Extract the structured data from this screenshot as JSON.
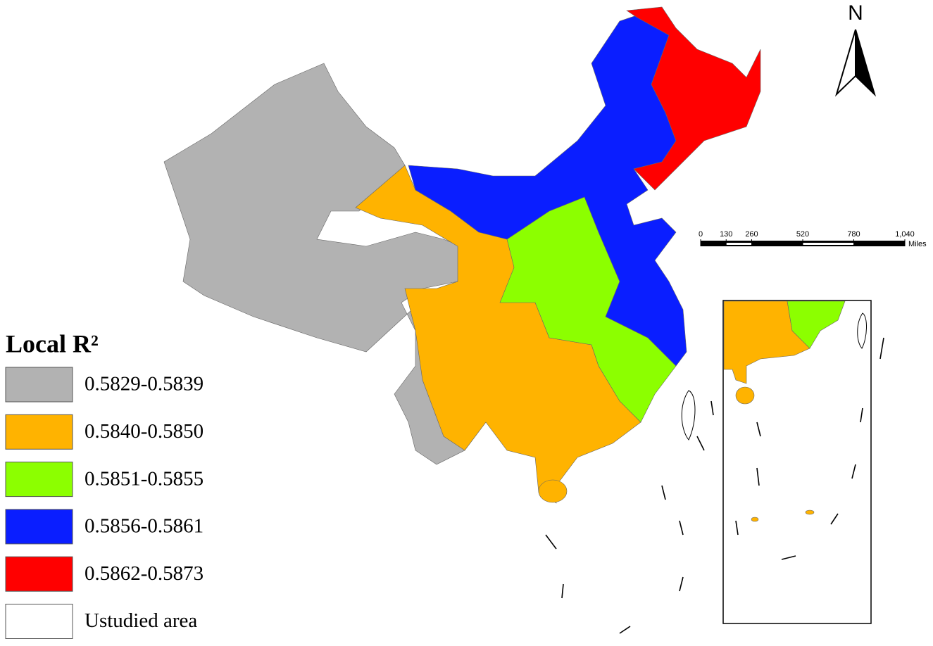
{
  "legend": {
    "title": "Local R²",
    "items": [
      {
        "label": "0.5829-0.5839",
        "color": "#b2b2b2"
      },
      {
        "label": "0.5840-0.5850",
        "color": "#ffb300"
      },
      {
        "label": "0.5851-0.5855",
        "color": "#8cff00"
      },
      {
        "label": "0.5856-0.5861",
        "color": "#0a1eff"
      },
      {
        "label": "0.5862-0.5873",
        "color": "#ff0000"
      },
      {
        "label": "Ustudied area",
        "color": "#ffffff"
      }
    ]
  },
  "north_arrow": {
    "label": "N"
  },
  "scale_bar": {
    "ticks": [
      0,
      130,
      260,
      520,
      780,
      {
        "value": 1040,
        "label": "1,040"
      }
    ],
    "unit": "Miles"
  }
}
